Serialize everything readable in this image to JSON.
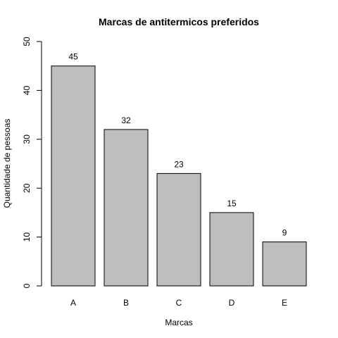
{
  "chart_data": {
    "type": "bar",
    "title": "Marcas de antitermicos preferidos",
    "xlabel": "Marcas",
    "ylabel": "Quantidade de pessoas",
    "categories": [
      "A",
      "B",
      "C",
      "D",
      "E"
    ],
    "values": [
      45,
      32,
      23,
      15,
      9
    ],
    "data_labels": [
      "45",
      "32",
      "23",
      "15",
      "9"
    ],
    "ylim": [
      0,
      50
    ],
    "yticks": [
      0,
      10,
      20,
      30,
      40,
      50
    ],
    "ytick_labels": [
      "0",
      "10",
      "20",
      "30",
      "40",
      "50"
    ],
    "grid": false,
    "bar_color": "#bebebe",
    "bar_border": "#000000"
  }
}
